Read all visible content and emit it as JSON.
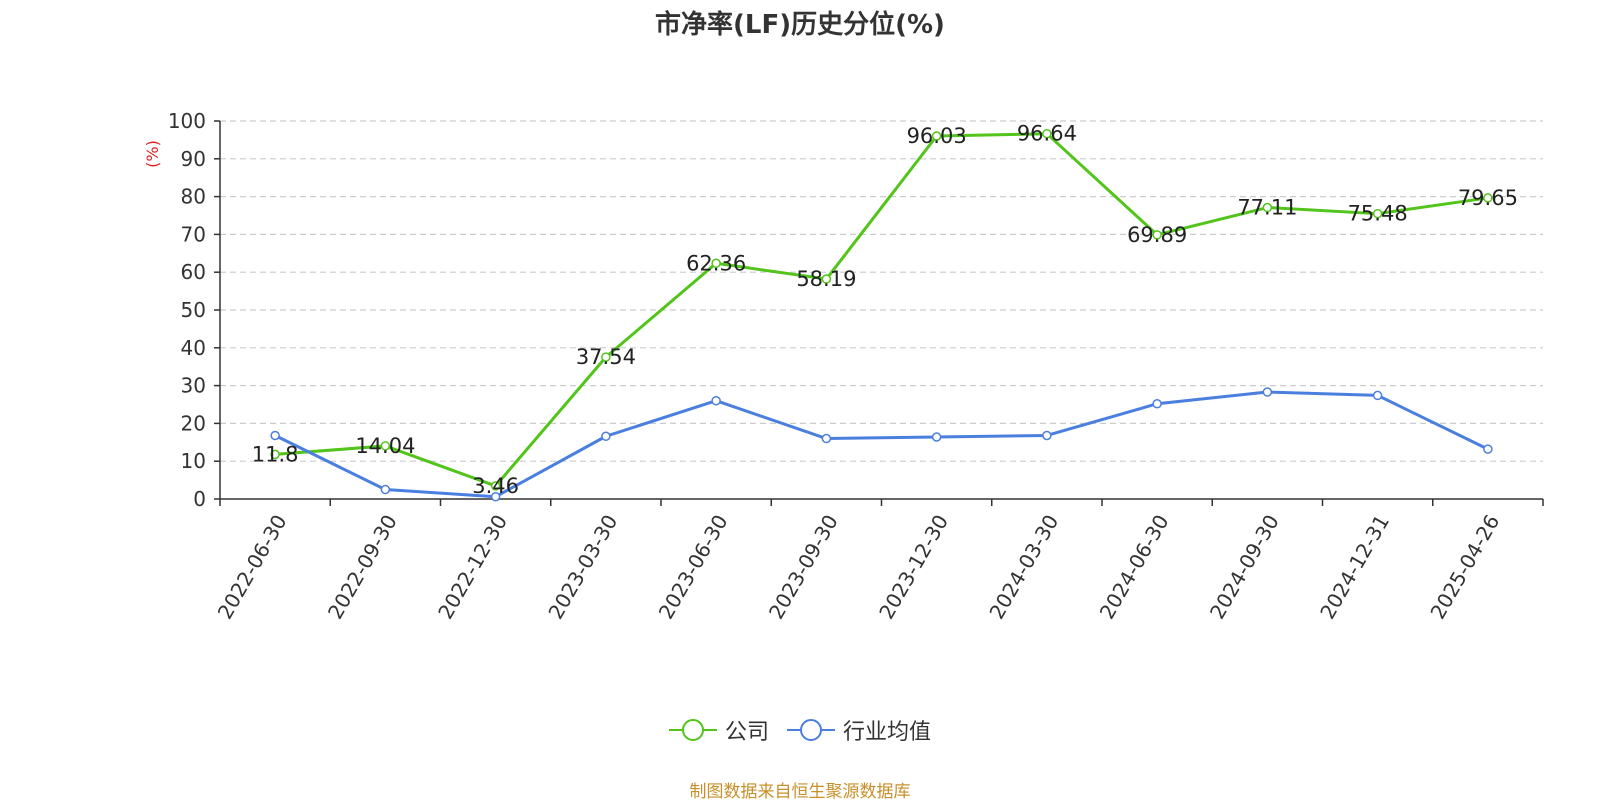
{
  "chart_data": {
    "type": "line",
    "title": "市净率(LF)历史分位(%)",
    "ylabel": "(%)",
    "categories": [
      "2022-06-30",
      "2022-09-30",
      "2022-12-30",
      "2023-03-30",
      "2023-06-30",
      "2023-09-30",
      "2023-12-30",
      "2024-03-30",
      "2024-06-30",
      "2024-09-30",
      "2024-12-31",
      "2025-04-26"
    ],
    "ylim": [
      0,
      100
    ],
    "yticks": [
      0,
      10,
      20,
      30,
      40,
      50,
      60,
      70,
      80,
      90,
      100
    ],
    "grid": true,
    "legend_position": "bottom",
    "series": [
      {
        "name": "公司",
        "color": "#52c41a",
        "values": [
          11.8,
          14.04,
          3.46,
          37.54,
          62.36,
          58.19,
          96.03,
          96.64,
          69.89,
          77.11,
          75.48,
          79.65
        ],
        "labels": [
          "11.8",
          "14.04",
          "3.46",
          "37.54",
          "62.36",
          "58.19",
          "96.03",
          "96.64",
          "69.89",
          "77.11",
          "75.48",
          "79.65"
        ]
      },
      {
        "name": "行业均值",
        "color": "#4a7fe0",
        "values": [
          16.8,
          2.5,
          0.6,
          16.6,
          26,
          16,
          16.4,
          16.8,
          25.2,
          28.3,
          27.4,
          13.2
        ]
      }
    ]
  },
  "source": "制图数据来自恒生聚源数据库"
}
